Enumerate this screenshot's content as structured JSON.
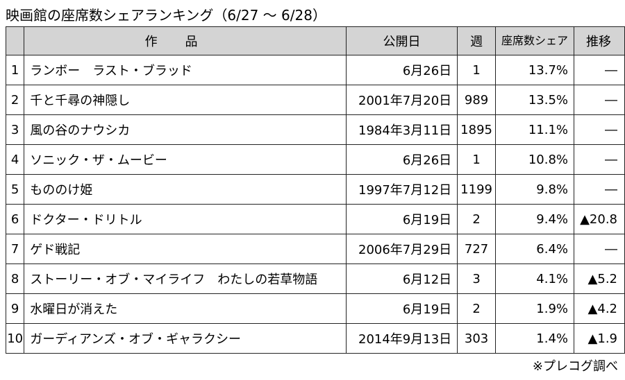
{
  "title": "映画館の座席数シェアランキング（6/27 ～ 6/28）",
  "headers": {
    "rank": "",
    "title": "作品",
    "release": "公開日",
    "week": "週",
    "share": "座席数シェア",
    "trend": "推移"
  },
  "rows": [
    {
      "rank": "1",
      "title": "ランボー　ラスト・ブラッド",
      "release": "6月26日",
      "week": "1",
      "share": "13.7%",
      "trend": "―"
    },
    {
      "rank": "2",
      "title": "千と千尋の神隠し",
      "release": "2001年7月20日",
      "week": "989",
      "share": "13.5%",
      "trend": "―"
    },
    {
      "rank": "3",
      "title": "風の谷のナウシカ",
      "release": "1984年3月11日",
      "week": "1895",
      "share": "11.1%",
      "trend": "―"
    },
    {
      "rank": "4",
      "title": "ソニック・ザ・ムービー",
      "release": "6月26日",
      "week": "1",
      "share": "10.8%",
      "trend": "―"
    },
    {
      "rank": "5",
      "title": "もののけ姫",
      "release": "1997年7月12日",
      "week": "1199",
      "share": "9.8%",
      "trend": "―"
    },
    {
      "rank": "6",
      "title": "ドクター・ドリトル",
      "release": "6月19日",
      "week": "2",
      "share": "9.4%",
      "trend": "▲20.8"
    },
    {
      "rank": "7",
      "title": "ゲド戦記",
      "release": "2006年7月29日",
      "week": "727",
      "share": "6.4%",
      "trend": "―"
    },
    {
      "rank": "8",
      "title": "ストーリー・オブ・マイライフ　わたしの若草物語",
      "release": "6月12日",
      "week": "3",
      "share": "4.1%",
      "trend": "▲5.2"
    },
    {
      "rank": "9",
      "title": "水曜日が消えた",
      "release": "6月19日",
      "week": "2",
      "share": "1.9%",
      "trend": "▲4.2"
    },
    {
      "rank": "10",
      "title": "ガーディアンズ・オブ・ギャラクシー",
      "release": "2014年9月13日",
      "week": "303",
      "share": "1.4%",
      "trend": "▲1.9"
    }
  ],
  "source": "※プレコグ調べ"
}
